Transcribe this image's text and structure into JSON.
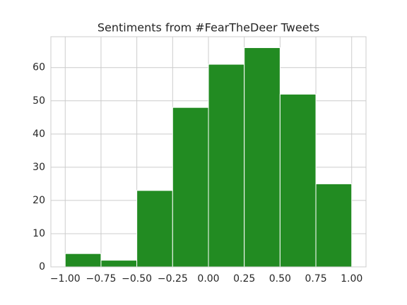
{
  "chart_data": {
    "type": "histogram",
    "title": "Sentiments from #FearTheDeer Tweets",
    "bins": [
      -1,
      -0.75,
      -0.5,
      -0.25,
      0,
      0.25,
      0.5,
      0.75,
      1
    ],
    "counts": [
      4,
      2,
      23,
      48,
      61,
      66,
      52,
      25
    ],
    "color": "#228b22",
    "xlim": [
      -1.1,
      1.1
    ],
    "xticks": [
      {
        "value": -1,
        "label": "−1.00"
      },
      {
        "value": -0.75,
        "label": "−0.75"
      },
      {
        "value": -0.5,
        "label": "−0.50"
      },
      {
        "value": -0.25,
        "label": "−0.25"
      },
      {
        "value": 0,
        "label": "0.00"
      },
      {
        "value": 0.25,
        "label": "0.25"
      },
      {
        "value": 0.5,
        "label": "0.50"
      },
      {
        "value": 0.75,
        "label": "0.75"
      },
      {
        "value": 1,
        "label": "1.00"
      }
    ],
    "ylim": [
      0,
      69.3
    ],
    "yticks": [
      0,
      10,
      20,
      30,
      40,
      50,
      60
    ],
    "grid": true
  }
}
